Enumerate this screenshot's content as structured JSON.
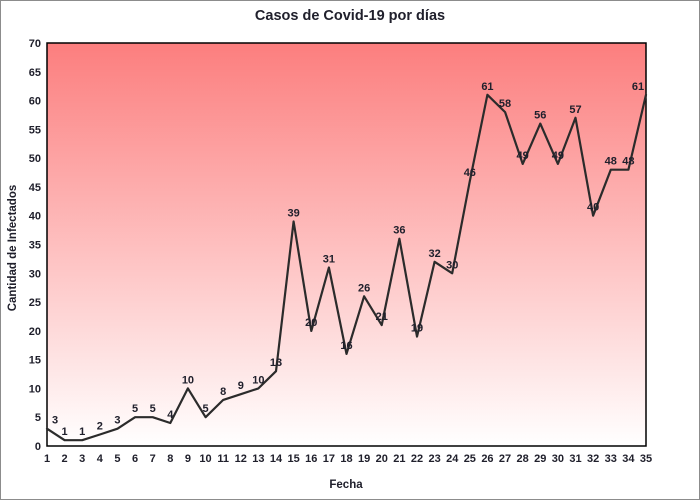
{
  "window": {
    "background": "#ffffff",
    "border_color": "#8c8c8c"
  },
  "chart_data": {
    "type": "line",
    "title": "Casos de Covid-19 por días",
    "xlabel": "Fecha",
    "ylabel": "Cantidad de Infectados",
    "categories": [
      1,
      2,
      3,
      4,
      5,
      6,
      7,
      8,
      9,
      10,
      11,
      12,
      13,
      14,
      15,
      16,
      17,
      18,
      19,
      20,
      21,
      22,
      23,
      24,
      25,
      26,
      27,
      28,
      29,
      30,
      31,
      32,
      33,
      34,
      35
    ],
    "values": [
      3,
      1,
      1,
      2,
      3,
      5,
      5,
      4,
      10,
      5,
      8,
      9,
      10,
      13,
      39,
      20,
      31,
      16,
      26,
      21,
      36,
      19,
      32,
      30,
      46,
      61,
      58,
      49,
      56,
      49,
      57,
      40,
      48,
      48,
      61
    ],
    "ylim": [
      0,
      70
    ],
    "ytick_step": 5,
    "grid": false,
    "legend": "none",
    "point_labels": true,
    "styles": {
      "line_color": "#2b2b2b",
      "plot_gradient_top": "#fc7e7e",
      "plot_gradient_bottom": "#ffffff",
      "plot_border_color": "#000000",
      "text_color": "#20202c"
    }
  }
}
